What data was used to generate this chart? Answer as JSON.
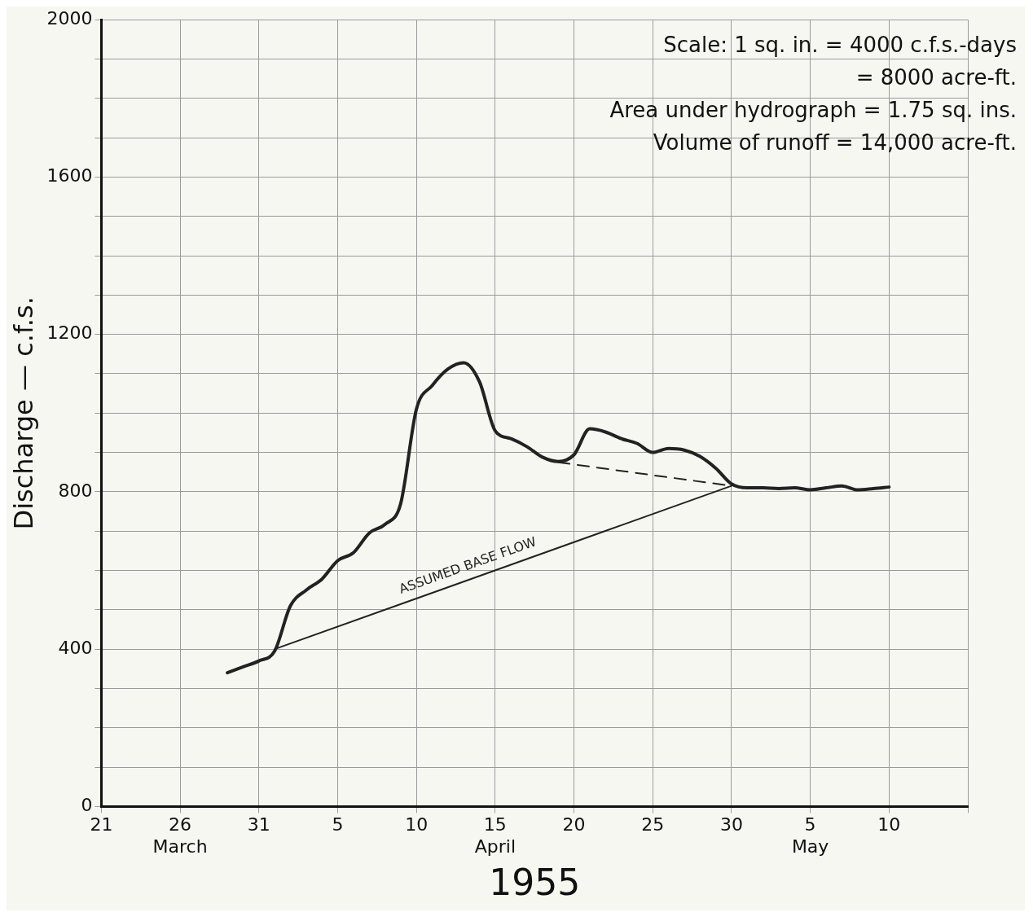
{
  "chart_data": {
    "type": "line",
    "xlabel": "1955",
    "ylabel": "Discharge — c.f.s.",
    "annotations": [
      "Scale: 1 sq. in. = 4000 c.f.s.-days",
      "= 8000 acre-ft.",
      "Area under hydrograph = 1.75 sq. ins.",
      "Volume of runoff = 14,000 acre-ft."
    ],
    "xlim": [
      "1955-03-21",
      "1955-05-15"
    ],
    "xticks": [
      {
        "value": "1955-03-21",
        "label": "21"
      },
      {
        "value": "1955-03-26",
        "label": "26\nMarch"
      },
      {
        "value": "1955-03-31",
        "label": "31"
      },
      {
        "value": "1955-04-05",
        "label": "5"
      },
      {
        "value": "1955-04-10",
        "label": "10"
      },
      {
        "value": "1955-04-15",
        "label": "15\nApril"
      },
      {
        "value": "1955-04-20",
        "label": "20"
      },
      {
        "value": "1955-04-25",
        "label": "25"
      },
      {
        "value": "1955-04-30",
        "label": "30"
      },
      {
        "value": "1955-05-05",
        "label": "5\nMay"
      },
      {
        "value": "1955-05-10",
        "label": "10"
      },
      {
        "value": "1955-05-15",
        "label": null
      }
    ],
    "ylim": [
      0,
      2000
    ],
    "yticks": [
      0,
      {
        "value": 100,
        "label": null
      },
      {
        "value": 200,
        "label": null
      },
      {
        "value": 300,
        "label": null
      },
      400,
      {
        "value": 500,
        "label": null
      },
      {
        "value": 600,
        "label": null
      },
      {
        "value": 700,
        "label": null
      },
      800,
      {
        "value": 900,
        "label": null
      },
      {
        "value": 1000,
        "label": null
      },
      {
        "value": 1100,
        "label": null
      },
      1200,
      {
        "value": 1300,
        "label": null
      },
      {
        "value": 1400,
        "label": null
      },
      {
        "value": 1500,
        "label": null
      },
      1600,
      {
        "value": 1700,
        "label": null
      },
      {
        "value": 1800,
        "label": null
      },
      {
        "value": 1900,
        "label": null
      },
      2000
    ],
    "grid": true,
    "legend": false,
    "marker": "none",
    "series": [
      {
        "color": "#222222",
        "line_style": "solid",
        "x": [
          "1955-03-29",
          "1955-03-30",
          "1955-03-31",
          "1955-04-01",
          "1955-04-02",
          "1955-04-03",
          "1955-04-04",
          "1955-04-05",
          "1955-04-06",
          "1955-04-07",
          "1955-04-08",
          "1955-04-09",
          "1955-04-10",
          "1955-04-11",
          "1955-04-12",
          "1955-04-13",
          "1955-04-14",
          "1955-04-15",
          "1955-04-16",
          "1955-04-17",
          "1955-04-18",
          "1955-04-19",
          "1955-04-20",
          "1955-04-21",
          "1955-04-22",
          "1955-04-23",
          "1955-04-24",
          "1955-04-25",
          "1955-04-26",
          "1955-04-27",
          "1955-04-28",
          "1955-04-29",
          "1955-04-30",
          "1955-05-01",
          "1955-05-02",
          "1955-05-03",
          "1955-05-04",
          "1955-05-05",
          "1955-05-06",
          "1955-05-07",
          "1955-05-08",
          "1955-05-09",
          "1955-05-10"
        ],
        "values": [
          340,
          355,
          370,
          395,
          510,
          550,
          578,
          625,
          645,
          695,
          717,
          770,
          1010,
          1070,
          1112,
          1128,
          1080,
          955,
          935,
          915,
          888,
          877,
          894,
          960,
          952,
          935,
          923,
          900,
          910,
          906,
          890,
          860,
          820,
          810,
          810,
          808,
          810,
          805,
          810,
          815,
          805,
          808,
          812
        ]
      },
      {
        "name": "ASSUMED BASE FLOW",
        "color": "#222222",
        "line_style": "solid",
        "x": [
          "1955-04-01",
          "1955-04-30"
        ],
        "values": [
          400,
          815
        ]
      },
      {
        "color": "#222222",
        "line_style": "dashed",
        "x": [
          "1955-04-19",
          "1955-04-30"
        ],
        "values": [
          875,
          815
        ]
      }
    ]
  }
}
